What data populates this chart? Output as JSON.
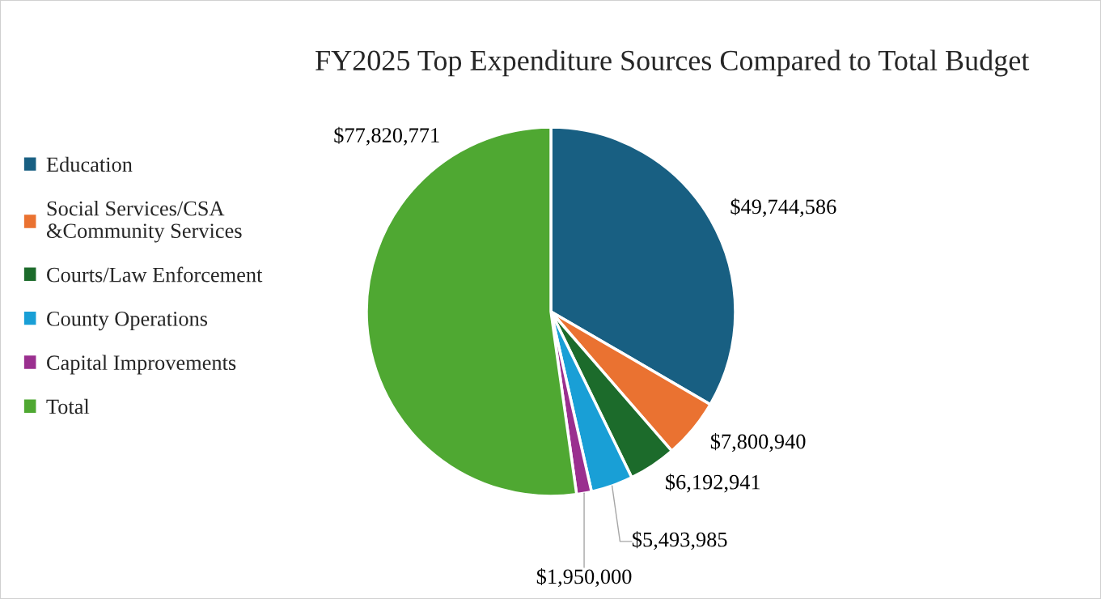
{
  "chart_data": {
    "type": "pie",
    "title": "FY2025 Top Expenditure Sources Compared to Total Budget",
    "categories": [
      "Education",
      "Social Services/CSA\n&Community Services",
      "Courts/Law Enforcement",
      "County Operations",
      "Capital Improvements",
      "Total"
    ],
    "values": [
      49744586,
      7800940,
      6192941,
      5493985,
      1950000,
      77820771
    ],
    "value_labels": [
      "$49,744,586",
      "$7,800,940",
      "$6,192,941",
      "$5,493,985",
      "$1,950,000",
      "$77,820,771"
    ],
    "colors": [
      "#185f82",
      "#ea7231",
      "#1c6b2b",
      "#199fd6",
      "#9a2f8f",
      "#4fa832"
    ],
    "legend": "left"
  }
}
